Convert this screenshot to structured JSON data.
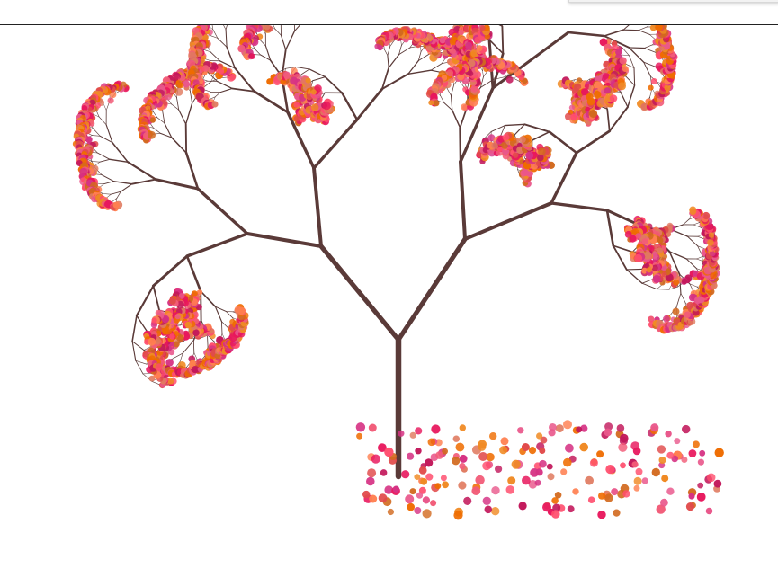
{
  "scene": {
    "subject": "fractal-blossom-tree",
    "colors": {
      "background": "#ffffff",
      "branch": "#5a3a38",
      "petals": [
        "#e8175d",
        "#f25c78",
        "#ff7f50",
        "#e14b4b",
        "#d63384",
        "#e07a5f",
        "#f08a24",
        "#c2185b",
        "#e9578b",
        "#ef6c00",
        "#d2691e",
        "#ff4d6d"
      ]
    },
    "fallen_petal_count": 200
  }
}
